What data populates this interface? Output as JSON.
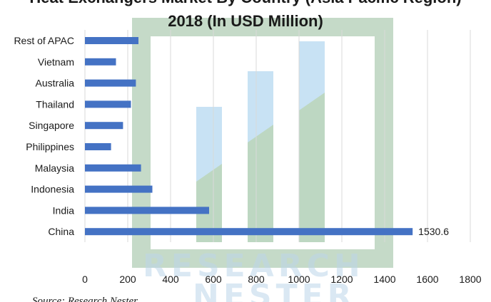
{
  "chart_data": {
    "type": "bar",
    "orientation": "horizontal",
    "title_lines": [
      "Heat Exchangers Market By Country (Asia Pacific Region)",
      "2018 (In USD Million)"
    ],
    "categories": [
      "Rest of APAC",
      "Vietnam",
      "Australia",
      "Thailand",
      "Singapore",
      "Philippines",
      "Malaysia",
      "Indonesia",
      "India",
      "China"
    ],
    "values": [
      250,
      145,
      238,
      215,
      178,
      122,
      262,
      315,
      580,
      1530.6
    ],
    "data_labels": {
      "China": "1530.6"
    },
    "xlim": [
      0,
      1800
    ],
    "x_ticks": [
      0,
      200,
      400,
      600,
      800,
      1000,
      1200,
      1400,
      1600,
      1800
    ],
    "grid": "vertical",
    "bar_color": "#4472c4"
  },
  "source": "Source: Research Nester",
  "watermark": {
    "line1": "RESEARCH",
    "line2": "NESTER"
  }
}
